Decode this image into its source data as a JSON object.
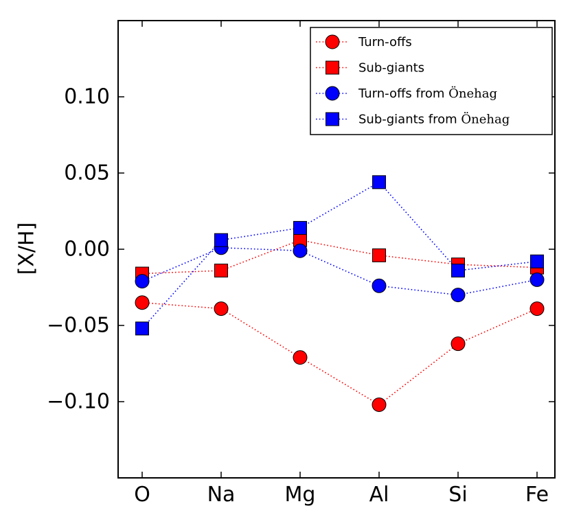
{
  "chart_data": {
    "type": "line",
    "title": "",
    "xlabel": "",
    "ylabel": "[X/H]",
    "categories": [
      "O",
      "Na",
      "Mg",
      "Al",
      "Si",
      "Fe"
    ],
    "ylim": [
      -0.15,
      0.15
    ],
    "yticks": [
      -0.1,
      -0.05,
      0.0,
      0.05,
      0.1
    ],
    "ytick_labels": [
      "−0.10",
      "−0.05",
      "0.00",
      "0.05",
      "0.10"
    ],
    "grid": false,
    "legend_position": "top-right",
    "series": [
      {
        "name": "Turn-offs",
        "name_parts": [
          "Turn-offs",
          ""
        ],
        "color": "#ff0000",
        "marker": "circle",
        "linestyle": "dotted",
        "values": [
          -0.035,
          -0.039,
          -0.071,
          -0.102,
          -0.062,
          -0.039
        ]
      },
      {
        "name": "Sub-giants",
        "name_parts": [
          "Sub-giants",
          ""
        ],
        "color": "#ff0000",
        "marker": "square",
        "linestyle": "dotted",
        "values": [
          -0.016,
          -0.014,
          0.006,
          -0.004,
          -0.01,
          -0.012
        ]
      },
      {
        "name": "Turn-offs from Önehag",
        "name_parts": [
          "Turn-offs from ",
          "Önehag"
        ],
        "color": "#0000ff",
        "marker": "circle",
        "linestyle": "dotted",
        "values": [
          -0.021,
          0.001,
          -0.001,
          -0.024,
          -0.03,
          -0.02
        ]
      },
      {
        "name": "Sub-giants from Önehag",
        "name_parts": [
          "Sub-giants from ",
          "Önehag"
        ],
        "color": "#0000ff",
        "marker": "square",
        "linestyle": "dotted",
        "values": [
          -0.052,
          0.006,
          0.014,
          0.044,
          -0.014,
          -0.008
        ]
      }
    ]
  }
}
